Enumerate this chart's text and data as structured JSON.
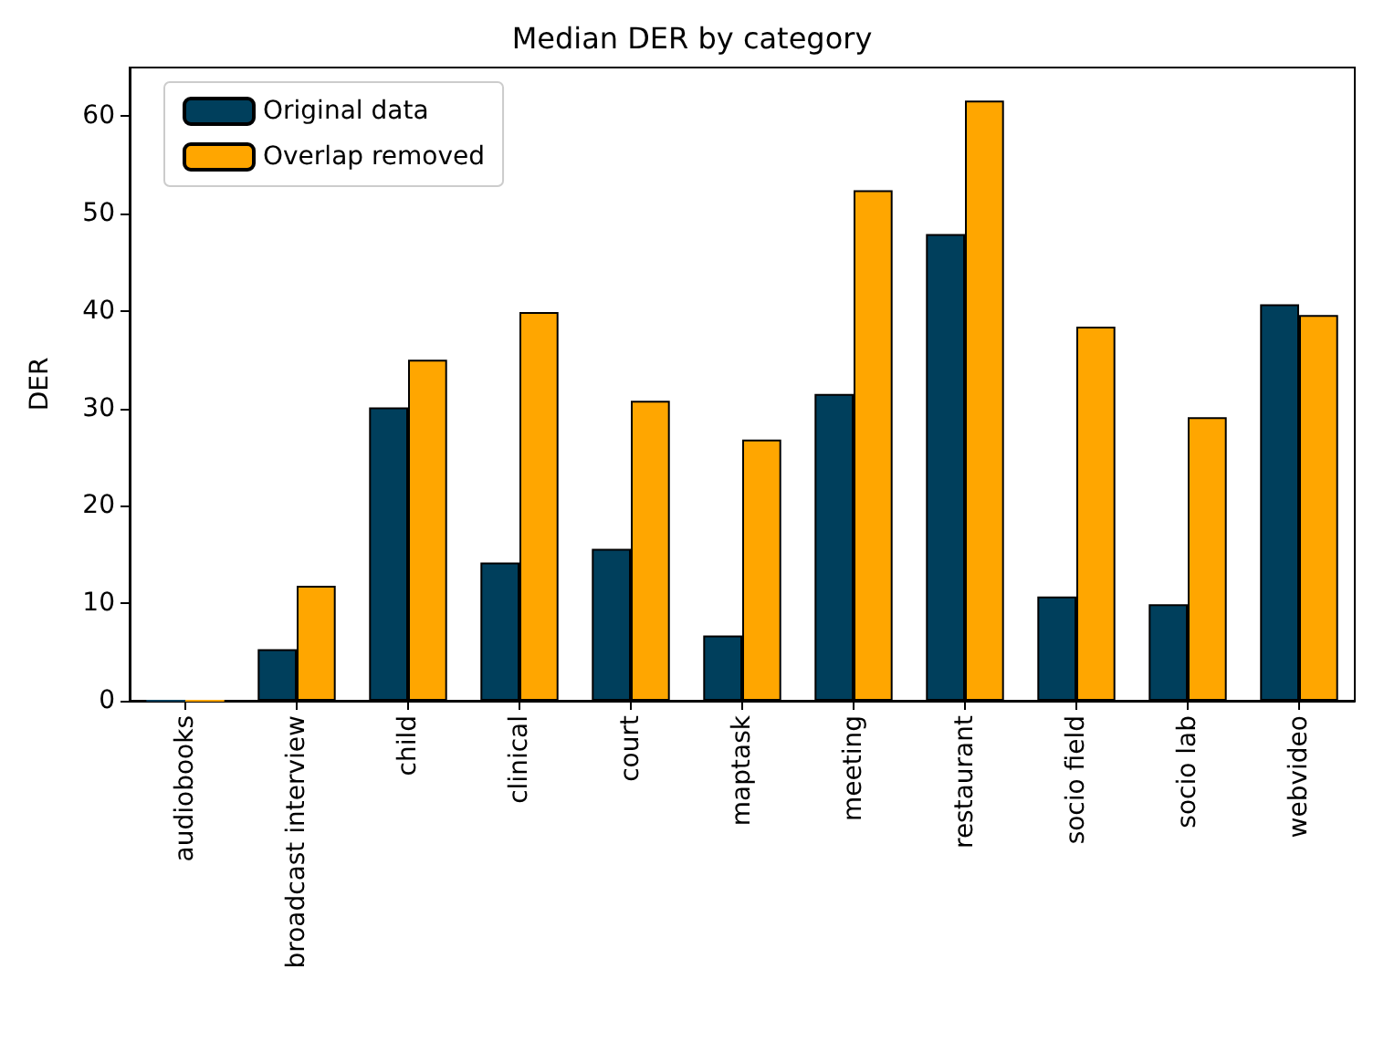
{
  "chart_data": {
    "type": "bar",
    "title": "Median DER by category",
    "ylabel": "DER",
    "categories": [
      "audiobooks",
      "broadcast interview",
      "child",
      "clinical",
      "court",
      "maptask",
      "meeting",
      "restaurant",
      "socio field",
      "socio lab",
      "webvideo"
    ],
    "series": [
      {
        "name": "Original data",
        "color": "#003f5c",
        "values": [
          0,
          5.3,
          30.1,
          14.2,
          15.6,
          6.7,
          31.5,
          47.9,
          10.7,
          9.9,
          40.7
        ]
      },
      {
        "name": "Overlap removed",
        "color": "#ffa600",
        "values": [
          0,
          11.8,
          35.0,
          39.9,
          30.8,
          26.8,
          52.4,
          61.6,
          38.4,
          29.1,
          39.6
        ]
      }
    ],
    "ylim": [
      0,
      65
    ],
    "yticks": [
      0,
      10,
      20,
      30,
      40,
      50,
      60
    ],
    "grid": false,
    "legend": "top left"
  }
}
